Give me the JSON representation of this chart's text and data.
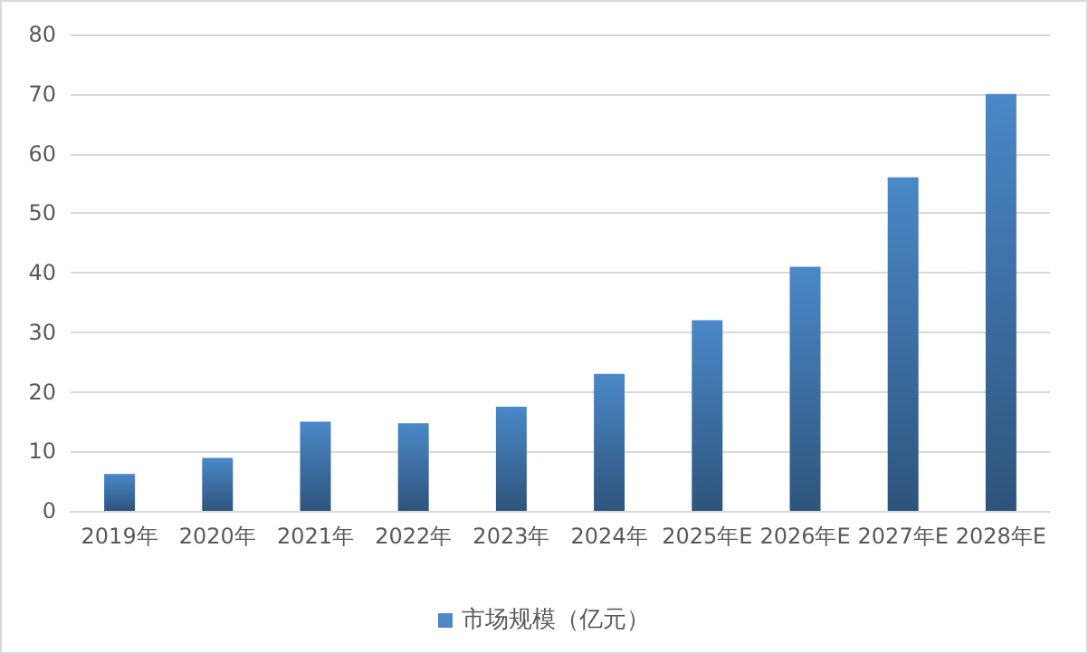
{
  "chart_data": {
    "type": "bar",
    "categories": [
      "2019年",
      "2020年",
      "2021年",
      "2022年",
      "2023年",
      "2024年",
      "2025年E",
      "2026年E",
      "2027年E",
      "2028年E"
    ],
    "series": [
      {
        "name": "市场规模（亿元）",
        "color": "#4a88c8",
        "values": [
          6.2,
          8.9,
          15.0,
          14.7,
          17.5,
          23,
          32,
          41,
          56,
          70
        ]
      }
    ],
    "ylim": [
      0,
      80
    ],
    "yticks": [
      0,
      10,
      20,
      30,
      40,
      50,
      60,
      70,
      80
    ],
    "grid": "y",
    "legend": "bottom"
  }
}
